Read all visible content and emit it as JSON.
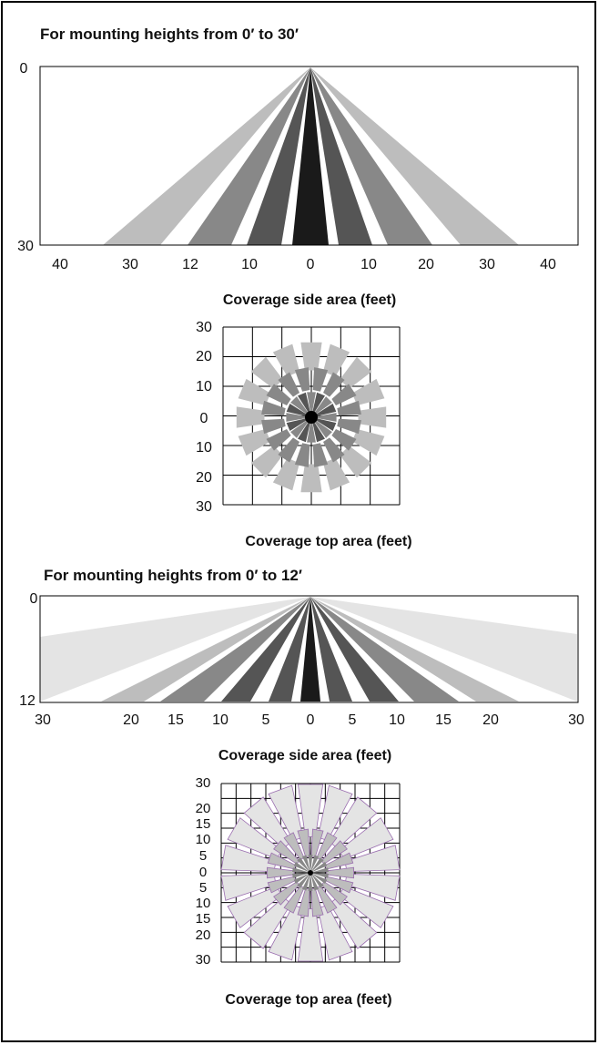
{
  "colors": {
    "black": "#1a1a1a",
    "dark": "#555555",
    "mid": "#888888",
    "light": "#bdbdbd",
    "pale": "#e4e4e4",
    "outline": "#9b6fb0"
  },
  "section1": {
    "heading": "For mounting heights from 0′ to 30′",
    "side": {
      "y_top_label": "0",
      "y_bottom_label": "30",
      "x_ticks": [
        "40",
        "30",
        "12",
        "10",
        "0",
        "10",
        "20",
        "30",
        "40"
      ],
      "caption": "Coverage side area (feet)"
    },
    "top": {
      "y_ticks": [
        "30",
        "20",
        "10",
        "0",
        "10",
        "20",
        "30"
      ],
      "caption": "Coverage top area (feet)"
    }
  },
  "section2": {
    "heading": "For mounting heights from 0′ to 12′",
    "side": {
      "y_top_label": "0",
      "y_bottom_label": "12",
      "x_ticks": [
        "30",
        "20",
        "15",
        "10",
        "5",
        "0",
        "5",
        "10",
        "15",
        "20",
        "30"
      ],
      "caption": "Coverage side area (feet)"
    },
    "top": {
      "y_ticks": [
        "30",
        "20",
        "15",
        "10",
        "5",
        "0",
        "5",
        "10",
        "15",
        "20",
        "30"
      ],
      "caption": "Coverage top area (feet)"
    }
  }
}
